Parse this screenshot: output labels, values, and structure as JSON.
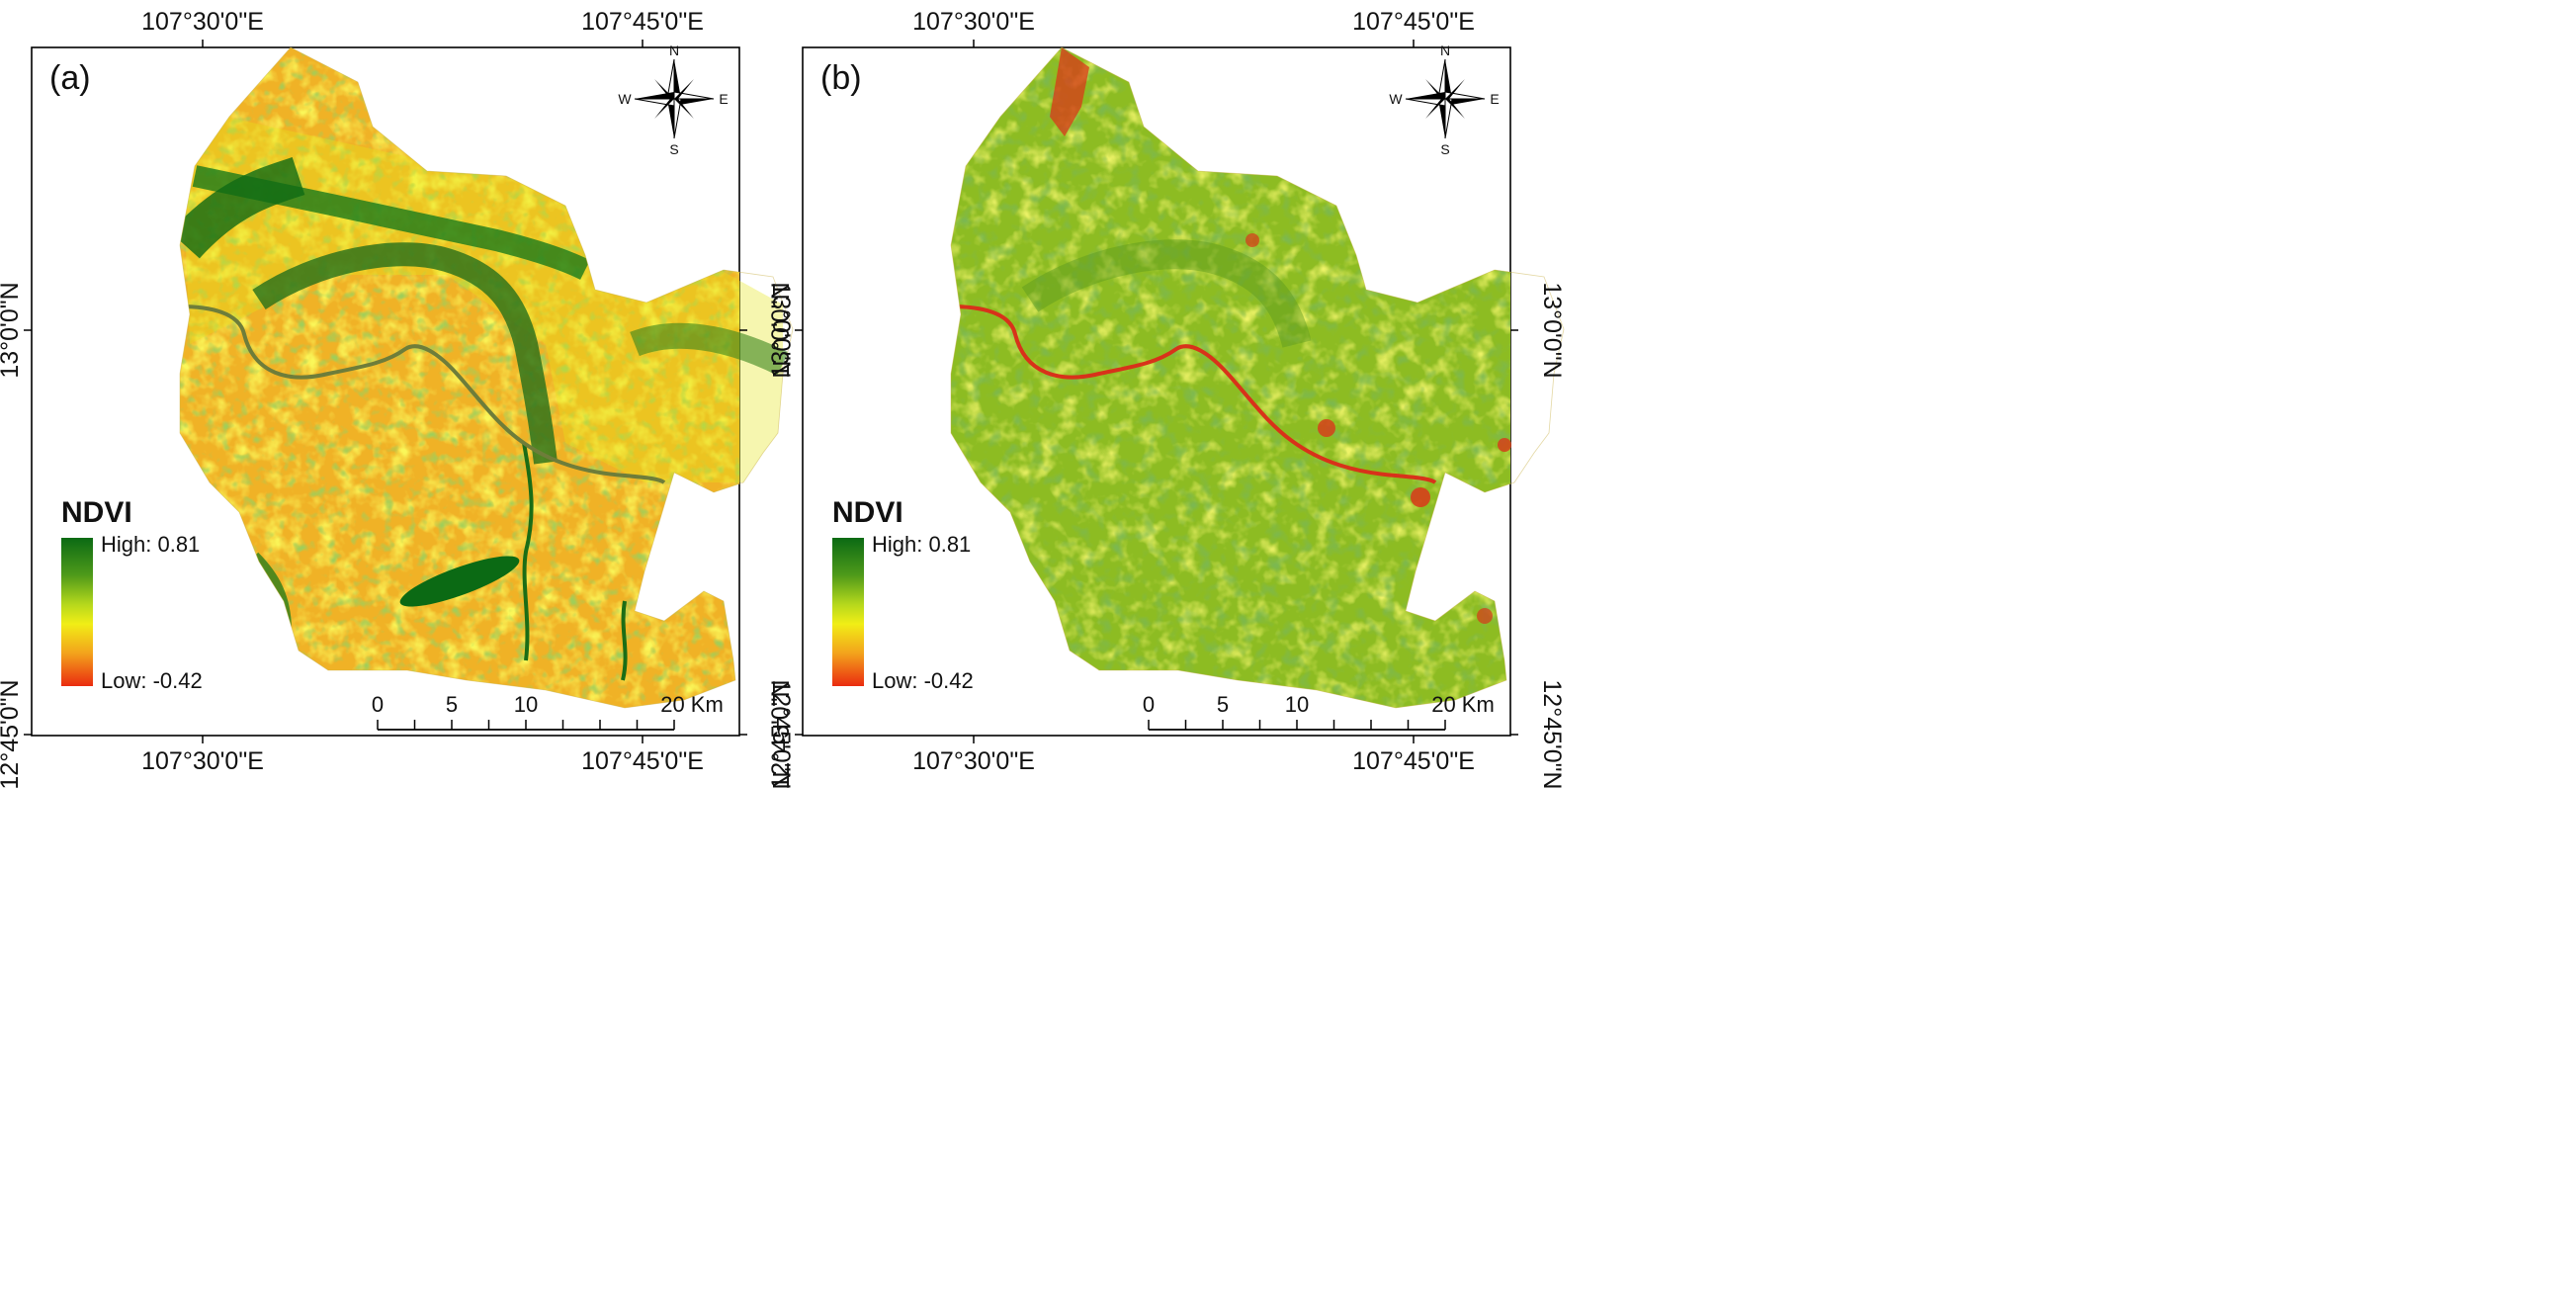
{
  "colors": {
    "high": "#0b6a14",
    "mid_green": "#8fc41d",
    "mid_yellow": "#f1ee16",
    "low_orange": "#f3a21c",
    "low": "#ea2b10",
    "river_a": "#6e7d3a",
    "river_b": "#d8321a",
    "frame": "#000000"
  },
  "panels": [
    {
      "label": "(a)",
      "top_ticks": [
        "107°30'0\"E",
        "107°45'0\"E"
      ],
      "bottom_ticks": [
        "107°30'0\"E",
        "107°45'0\"E"
      ],
      "left_ticks": [
        "13°0'0\"N",
        "12°45'0\"N"
      ],
      "right_ticks": [
        "13°0'0\"N",
        "12°45'0\"N"
      ],
      "legend": {
        "title": "NDVI",
        "high": "High: 0.81",
        "low": "Low: -0.42"
      },
      "scalebar": {
        "labels": [
          "0",
          "5",
          "10",
          "20 Km"
        ]
      },
      "compass": {
        "n": "N",
        "s": "S",
        "e": "E",
        "w": "W"
      },
      "style": "dry"
    },
    {
      "label": "(b)",
      "top_ticks": [
        "107°30'0\"E",
        "107°45'0\"E"
      ],
      "bottom_ticks": [
        "107°30'0\"E",
        "107°45'0\"E"
      ],
      "left_ticks": [
        "13°0'0\"N",
        "12°45'0\"N"
      ],
      "right_ticks": [
        "13°0'0\"N",
        "12°45'0\"N"
      ],
      "legend": {
        "title": "NDVI",
        "high": "High: 0.81",
        "low": "Low: -0.42"
      },
      "scalebar": {
        "labels": [
          "0",
          "5",
          "10",
          "20 Km"
        ]
      },
      "compass": {
        "n": "N",
        "s": "S",
        "e": "E",
        "w": "W"
      },
      "style": "wet"
    }
  ]
}
